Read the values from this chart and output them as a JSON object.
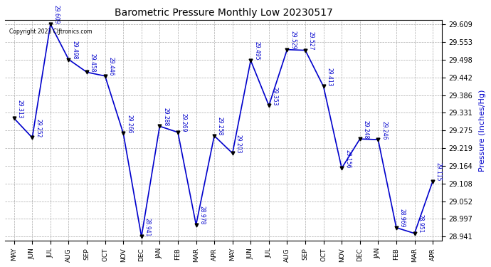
{
  "title": "Barometric Pressure Monthly Low 20230517",
  "ylabel": "Pressure (Inches/Hg)",
  "copyright": "Copyright 2023 Clƒtronics.com",
  "months": [
    "MAY",
    "JUN",
    "JUL",
    "AUG",
    "SEP",
    "OCT",
    "NOV",
    "DEC",
    "JAN",
    "FEB",
    "MAR",
    "APR",
    "MAY",
    "JUN",
    "JUL",
    "AUG",
    "SEP",
    "OCT",
    "NOV",
    "DEC",
    "JAN",
    "FEB",
    "MAR",
    "APR"
  ],
  "values": [
    29.313,
    29.252,
    29.609,
    29.498,
    29.458,
    29.446,
    29.266,
    28.941,
    29.288,
    29.269,
    28.978,
    29.258,
    29.203,
    29.495,
    29.353,
    29.529,
    29.527,
    29.413,
    29.156,
    29.248,
    29.246,
    28.969,
    28.951,
    29.115
  ],
  "ylim_min": 28.941,
  "ylim_max": 29.609,
  "yticks": [
    28.941,
    28.997,
    29.052,
    29.108,
    29.164,
    29.219,
    29.275,
    29.331,
    29.386,
    29.442,
    29.498,
    29.553,
    29.609
  ],
  "line_color": "#0000cc",
  "marker_color": "#000000",
  "grid_color": "#aaaaaa",
  "title_color": "#000000",
  "ylabel_color": "#0000cc",
  "copyright_color": "#000000",
  "label_color": "#0000cc",
  "bg_color": "#ffffff"
}
